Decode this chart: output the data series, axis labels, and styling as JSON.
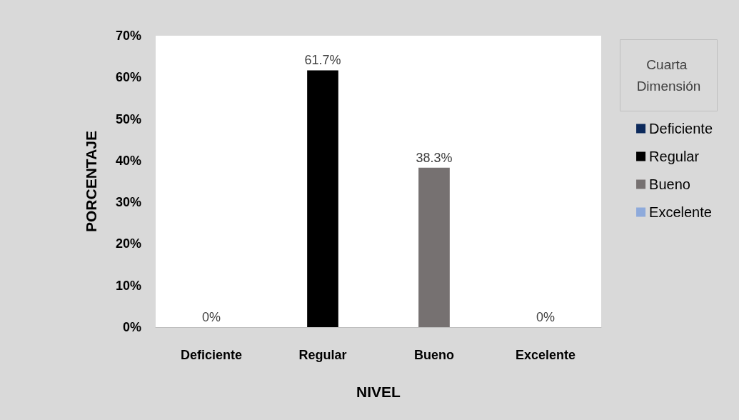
{
  "chart_data": {
    "type": "bar",
    "xlabel": "NIVEL",
    "ylabel": "PORCENTAJE",
    "legend_title": "Cuarta Dimensión",
    "legend": "right",
    "grid": false,
    "categories": [
      "Deficiente",
      "Regular",
      "Bueno",
      "Excelente"
    ],
    "ylim": [
      0,
      70
    ],
    "yticks": [
      {
        "value": 0,
        "label": "0%"
      },
      {
        "value": 10,
        "label": "10%"
      },
      {
        "value": 20,
        "label": "20%"
      },
      {
        "value": 30,
        "label": "30%"
      },
      {
        "value": 40,
        "label": "40%"
      },
      {
        "value": 50,
        "label": "50%"
      },
      {
        "value": 60,
        "label": "60%"
      },
      {
        "value": 70,
        "label": "70%"
      }
    ],
    "series": [
      {
        "name": "Deficiente",
        "color": "#0d2a5c",
        "values": [
          0,
          null,
          null,
          null
        ],
        "value_labels": [
          "0%",
          null,
          null,
          null
        ]
      },
      {
        "name": "Regular",
        "color": "#000000",
        "values": [
          null,
          61.7,
          null,
          null
        ],
        "value_labels": [
          null,
          "61.7%",
          null,
          null
        ]
      },
      {
        "name": "Bueno",
        "color": "#767171",
        "values": [
          null,
          null,
          38.3,
          null
        ],
        "value_labels": [
          null,
          null,
          "38.3%",
          null
        ]
      },
      {
        "name": "Excelente",
        "color": "#8eaadb",
        "values": [
          null,
          null,
          null,
          0
        ],
        "value_labels": [
          null,
          null,
          null,
          "0%"
        ]
      }
    ]
  }
}
